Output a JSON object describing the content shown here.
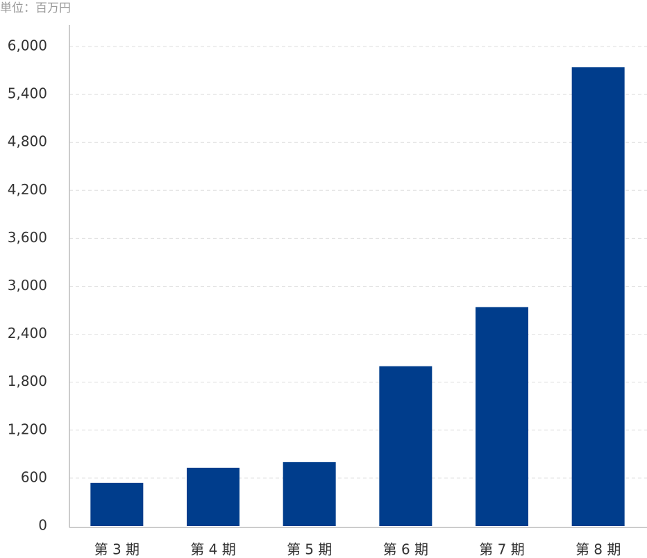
{
  "chart_data": {
    "type": "bar",
    "unit_label": "単位：百万円",
    "categories": [
      "第 3 期",
      "第 4 期",
      "第 5 期",
      "第 6 期",
      "第 7 期",
      "第 8 期"
    ],
    "values": [
      540,
      730,
      800,
      2000,
      2740,
      5740
    ],
    "color": "#003d8c",
    "ylim": [
      0,
      6000
    ],
    "yticks": [
      0,
      600,
      {
        "value": 1200,
        "label": "1,200"
      },
      {
        "value": 1800,
        "label": "1,800"
      },
      {
        "value": 2400,
        "label": "2,400"
      },
      {
        "value": 3000,
        "label": "3,000"
      },
      {
        "value": 3600,
        "label": "3,600"
      },
      {
        "value": 4200,
        "label": "4,200"
      },
      {
        "value": 4800,
        "label": "4,800"
      },
      {
        "value": 5400,
        "label": "5,400"
      },
      {
        "value": 6000,
        "label": "6,000"
      }
    ],
    "grid": true
  }
}
